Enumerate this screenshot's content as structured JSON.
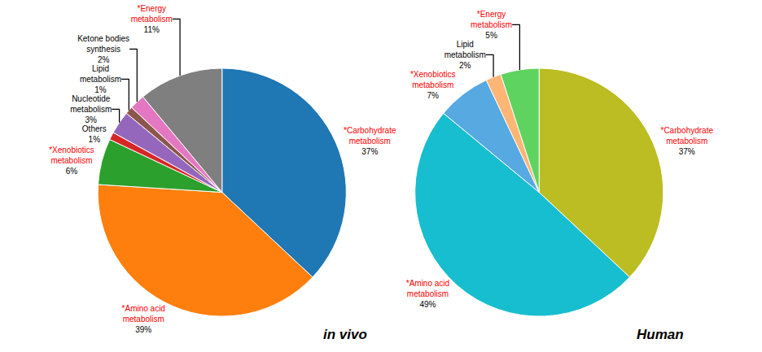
{
  "chart_data": [
    {
      "type": "pie",
      "title": "in vivo",
      "categories": [
        "*Carbohydrate\nmetabolism",
        "*Amino acid\nmetabolism",
        "*Xenobiotics\nmetabolism",
        "Others",
        "Nucleotide\nmetabolism",
        "Lipid\nmetabolism",
        "Ketone bodies\nsynthesis",
        "*Energy\nmetabolism"
      ],
      "values": [
        37,
        39,
        6,
        1,
        3,
        1,
        2,
        11
      ],
      "value_labels": [
        "37%",
        "39%",
        "6%",
        "1%",
        "3%",
        "1%",
        "2%",
        "11%"
      ],
      "data_labels": true
    },
    {
      "type": "pie",
      "title": "Human",
      "categories": [
        "*Carbohydrate\nmetabolism",
        "*Amino acid\nmetabolism",
        "*Xenobiotics\nmetabolism",
        "Lipid\nmetabolism",
        "*Energy\nmetabolism"
      ],
      "values": [
        37,
        49,
        7,
        2,
        5
      ],
      "value_labels": [
        "37%",
        "49%",
        "7%",
        "2%",
        "5%"
      ],
      "data_labels": true
    }
  ]
}
